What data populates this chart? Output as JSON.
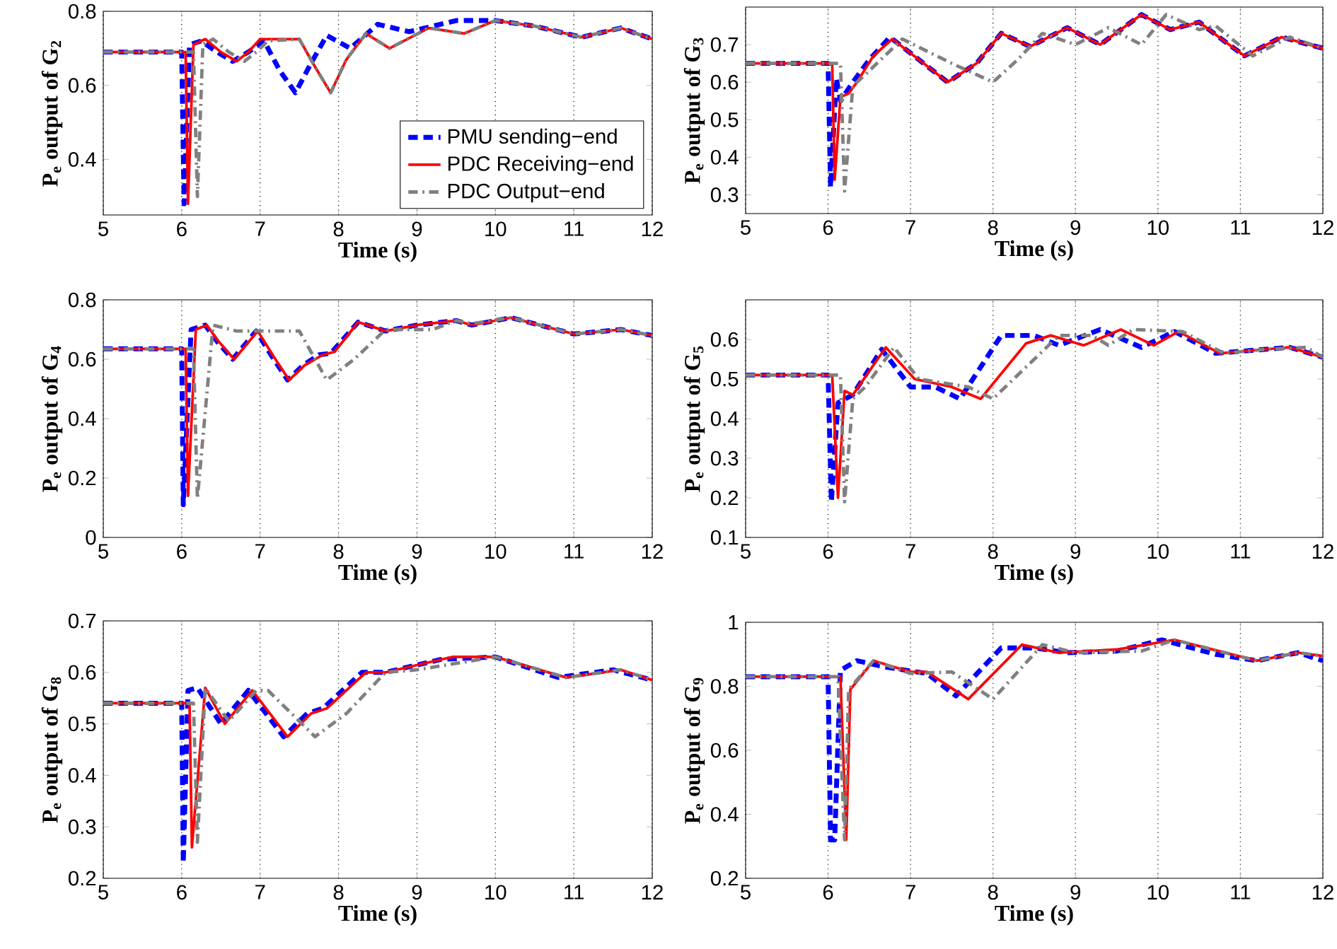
{
  "chart_data": [
    {
      "type": "line",
      "xlabel": "Time (s)",
      "ylabel": "P$_{e}$ output of G$_{2}$",
      "xlim": [
        5,
        12
      ],
      "xticks": [
        5,
        6,
        7,
        8,
        9,
        10,
        11,
        12
      ],
      "ylim": [
        0.25,
        0.8
      ],
      "yticks": [
        0.4,
        0.6,
        0.8
      ],
      "grid": "x",
      "legend": "bottom right",
      "series": [
        {
          "name": "PMU sending−end",
          "color": "#0000ff",
          "line_style": "dashed",
          "x": [
            5,
            6.0,
            6.03,
            6.1,
            6.25,
            6.45,
            6.65,
            6.85,
            7.05,
            7.25,
            7.45,
            7.65,
            7.85,
            8.15,
            8.5,
            8.9,
            9.5,
            10.0,
            10.5,
            11.1,
            11.6,
            12
          ],
          "values": [
            0.69,
            0.69,
            0.28,
            0.71,
            0.72,
            0.69,
            0.665,
            0.69,
            0.72,
            0.64,
            0.58,
            0.66,
            0.735,
            0.7,
            0.765,
            0.745,
            0.775,
            0.775,
            0.76,
            0.73,
            0.755,
            0.725
          ]
        },
        {
          "name": "PDC Receiving−end",
          "color": "#ff0000",
          "line_style": "solid",
          "x": [
            5,
            6.05,
            6.08,
            6.15,
            6.3,
            6.5,
            6.7,
            6.85,
            7.0,
            7.5,
            7.7,
            7.9,
            8.1,
            8.35,
            8.65,
            9.15,
            9.6,
            10.0,
            10.5,
            11.1,
            11.6,
            12
          ],
          "values": [
            0.69,
            0.69,
            0.28,
            0.71,
            0.725,
            0.69,
            0.665,
            0.69,
            0.725,
            0.725,
            0.65,
            0.58,
            0.67,
            0.74,
            0.7,
            0.755,
            0.74,
            0.775,
            0.76,
            0.73,
            0.755,
            0.725
          ]
        },
        {
          "name": "PDC Output−end",
          "color": "#808080",
          "line_style": "dashdot",
          "x": [
            5,
            6.15,
            6.2,
            6.27,
            6.4,
            6.6,
            6.8,
            6.95,
            7.1,
            7.5,
            7.7,
            7.9,
            8.1,
            8.35,
            8.65,
            9.15,
            9.6,
            10.0,
            10.5,
            11.1,
            11.6,
            12
          ],
          "values": [
            0.69,
            0.69,
            0.3,
            0.71,
            0.725,
            0.69,
            0.665,
            0.69,
            0.72,
            0.725,
            0.65,
            0.58,
            0.67,
            0.74,
            0.7,
            0.755,
            0.74,
            0.775,
            0.76,
            0.73,
            0.755,
            0.725
          ]
        }
      ]
    },
    {
      "type": "line",
      "xlabel": "Time (s)",
      "ylabel": "P$_{e}$ output of G$_{3}$",
      "xlim": [
        5,
        12
      ],
      "xticks": [
        5,
        6,
        7,
        8,
        9,
        10,
        11,
        12
      ],
      "ylim": [
        0.25,
        0.8
      ],
      "yticks": [
        0.3,
        0.4,
        0.5,
        0.6,
        0.7
      ],
      "grid": "x",
      "series": [
        {
          "color": "#0000ff",
          "line_style": "dashed",
          "x": [
            5,
            6.0,
            6.03,
            6.1,
            6.15,
            6.3,
            6.5,
            6.75,
            7.1,
            7.45,
            7.8,
            8.1,
            8.45,
            8.9,
            9.3,
            9.8,
            10.15,
            10.5,
            10.8,
            11.05,
            11.5,
            12
          ],
          "values": [
            0.65,
            0.65,
            0.32,
            0.61,
            0.55,
            0.6,
            0.66,
            0.72,
            0.66,
            0.6,
            0.65,
            0.73,
            0.695,
            0.745,
            0.7,
            0.78,
            0.74,
            0.76,
            0.71,
            0.67,
            0.72,
            0.69
          ]
        },
        {
          "color": "#ff0000",
          "line_style": "solid",
          "x": [
            5,
            6.05,
            6.08,
            6.15,
            6.25,
            6.35,
            6.55,
            6.78,
            7.1,
            7.45,
            7.8,
            8.1,
            8.45,
            8.9,
            9.3,
            9.8,
            10.15,
            10.5,
            10.8,
            11.05,
            11.5,
            12
          ],
          "values": [
            0.65,
            0.65,
            0.34,
            0.56,
            0.57,
            0.6,
            0.67,
            0.715,
            0.66,
            0.6,
            0.65,
            0.73,
            0.695,
            0.745,
            0.7,
            0.78,
            0.74,
            0.76,
            0.71,
            0.67,
            0.72,
            0.69
          ]
        },
        {
          "color": "#808080",
          "line_style": "dashdot",
          "x": [
            5,
            6.15,
            6.2,
            6.3,
            6.45,
            6.9,
            7.5,
            8.0,
            8.3,
            8.6,
            9.0,
            9.4,
            9.8,
            10.1,
            10.5,
            10.7,
            11.15,
            11.6,
            12
          ],
          "values": [
            0.65,
            0.65,
            0.31,
            0.59,
            0.62,
            0.715,
            0.65,
            0.6,
            0.66,
            0.73,
            0.7,
            0.745,
            0.7,
            0.78,
            0.74,
            0.75,
            0.67,
            0.72,
            0.69
          ]
        }
      ]
    },
    {
      "type": "line",
      "xlabel": "Time (s)",
      "ylabel": "P$_{e}$ output of G$_{4}$",
      "xlim": [
        5,
        12
      ],
      "xticks": [
        5,
        6,
        7,
        8,
        9,
        10,
        11,
        12
      ],
      "ylim": [
        0,
        0.8
      ],
      "yticks": [
        0,
        0.2,
        0.4,
        0.6,
        0.8
      ],
      "grid": "x",
      "series": [
        {
          "color": "#0000ff",
          "line_style": "dashed",
          "x": [
            5,
            6.0,
            6.02,
            6.12,
            6.3,
            6.45,
            6.65,
            6.95,
            7.15,
            7.35,
            7.55,
            7.75,
            7.9,
            8.25,
            8.6,
            9.0,
            9.5,
            9.7,
            10.2,
            11.0,
            11.6,
            12
          ],
          "values": [
            0.635,
            0.635,
            0.11,
            0.7,
            0.715,
            0.66,
            0.6,
            0.695,
            0.61,
            0.53,
            0.58,
            0.615,
            0.62,
            0.725,
            0.695,
            0.715,
            0.73,
            0.715,
            0.74,
            0.685,
            0.7,
            0.68
          ]
        },
        {
          "color": "#ff0000",
          "line_style": "solid",
          "x": [
            5,
            6.05,
            6.08,
            6.18,
            6.32,
            6.47,
            6.67,
            6.97,
            7.17,
            7.37,
            7.57,
            7.8,
            7.95,
            8.25,
            8.6,
            9.0,
            9.5,
            9.7,
            10.2,
            11.0,
            11.6,
            12
          ],
          "values": [
            0.635,
            0.635,
            0.14,
            0.7,
            0.715,
            0.66,
            0.6,
            0.695,
            0.61,
            0.53,
            0.58,
            0.615,
            0.625,
            0.725,
            0.695,
            0.715,
            0.73,
            0.715,
            0.74,
            0.685,
            0.7,
            0.68
          ]
        },
        {
          "color": "#808080",
          "line_style": "dashdot",
          "x": [
            5,
            6.15,
            6.2,
            6.4,
            6.7,
            7.5,
            7.85,
            8.2,
            8.6,
            9.2,
            9.5,
            9.7,
            10.2,
            11.0,
            11.6,
            12
          ],
          "values": [
            0.635,
            0.635,
            0.13,
            0.715,
            0.695,
            0.695,
            0.53,
            0.6,
            0.7,
            0.7,
            0.73,
            0.72,
            0.74,
            0.685,
            0.7,
            0.68
          ]
        }
      ]
    },
    {
      "type": "line",
      "xlabel": "Time (s)",
      "ylabel": "P$_{e}$ output of G$_{5}$",
      "xlim": [
        5,
        12
      ],
      "xticks": [
        5,
        6,
        7,
        8,
        9,
        10,
        11,
        12
      ],
      "ylim": [
        0.1,
        0.7
      ],
      "yticks": [
        0.1,
        0.2,
        0.3,
        0.4,
        0.5,
        0.6
      ],
      "grid": "x",
      "series": [
        {
          "color": "#0000ff",
          "line_style": "dashed",
          "x": [
            5,
            6.0,
            6.04,
            6.12,
            6.3,
            6.65,
            7.0,
            7.3,
            7.6,
            8.1,
            8.5,
            8.8,
            9.3,
            9.8,
            10.2,
            10.7,
            11.3,
            11.6,
            12
          ],
          "values": [
            0.51,
            0.51,
            0.19,
            0.44,
            0.46,
            0.575,
            0.48,
            0.48,
            0.45,
            0.61,
            0.61,
            0.585,
            0.625,
            0.58,
            0.62,
            0.565,
            0.575,
            0.58,
            0.555
          ]
        },
        {
          "color": "#ff0000",
          "line_style": "solid",
          "x": [
            5,
            6.05,
            6.12,
            6.2,
            6.3,
            6.7,
            7.05,
            7.5,
            7.85,
            8.4,
            8.7,
            9.1,
            9.55,
            9.95,
            10.25,
            10.75,
            11.3,
            11.6,
            12
          ],
          "values": [
            0.51,
            0.51,
            0.2,
            0.47,
            0.46,
            0.58,
            0.5,
            0.48,
            0.45,
            0.59,
            0.61,
            0.585,
            0.625,
            0.585,
            0.62,
            0.565,
            0.575,
            0.58,
            0.555
          ]
        },
        {
          "color": "#808080",
          "line_style": "dashdot",
          "x": [
            5,
            6.15,
            6.2,
            6.3,
            6.45,
            6.8,
            7.1,
            7.7,
            8.0,
            8.8,
            9.2,
            9.4,
            9.7,
            10.3,
            10.8,
            11.3,
            11.8,
            12
          ],
          "values": [
            0.51,
            0.51,
            0.19,
            0.45,
            0.48,
            0.58,
            0.5,
            0.48,
            0.45,
            0.61,
            0.61,
            0.585,
            0.625,
            0.62,
            0.565,
            0.575,
            0.58,
            0.555
          ]
        }
      ]
    },
    {
      "type": "line",
      "xlabel": "Time (s)",
      "ylabel": "P$_{e}$ output of G$_{8}$",
      "xlim": [
        5,
        12
      ],
      "xticks": [
        5,
        6,
        7,
        8,
        9,
        10,
        11,
        12
      ],
      "ylim": [
        0.2,
        0.7
      ],
      "yticks": [
        0.2,
        0.3,
        0.4,
        0.5,
        0.6,
        0.7
      ],
      "grid": "x",
      "series": [
        {
          "color": "#0000ff",
          "line_style": "dashed",
          "x": [
            5,
            6.0,
            6.02,
            6.08,
            6.2,
            6.5,
            6.85,
            7.3,
            7.6,
            7.8,
            8.3,
            8.6,
            9.3,
            10.0,
            10.8,
            11.5,
            12
          ],
          "values": [
            0.54,
            0.54,
            0.23,
            0.565,
            0.57,
            0.5,
            0.565,
            0.475,
            0.52,
            0.53,
            0.6,
            0.6,
            0.625,
            0.63,
            0.59,
            0.605,
            0.585
          ]
        },
        {
          "color": "#ff0000",
          "line_style": "solid",
          "x": [
            5,
            6.1,
            6.13,
            6.3,
            6.55,
            6.9,
            7.35,
            7.65,
            7.85,
            8.35,
            8.6,
            9.45,
            10.0,
            10.9,
            11.6,
            12
          ],
          "values": [
            0.54,
            0.54,
            0.26,
            0.57,
            0.5,
            0.565,
            0.475,
            0.52,
            0.53,
            0.6,
            0.6,
            0.63,
            0.63,
            0.59,
            0.605,
            0.585
          ]
        },
        {
          "color": "#808080",
          "line_style": "dashdot",
          "x": [
            5,
            6.15,
            6.2,
            6.3,
            6.6,
            6.95,
            7.1,
            7.7,
            8.1,
            8.6,
            9.0,
            10.0,
            10.9,
            11.6,
            12
          ],
          "values": [
            0.54,
            0.54,
            0.27,
            0.57,
            0.505,
            0.565,
            0.565,
            0.475,
            0.52,
            0.6,
            0.605,
            0.63,
            0.59,
            0.605,
            0.585
          ]
        }
      ]
    },
    {
      "type": "line",
      "xlabel": "Time (s)",
      "ylabel": "P$_{e}$ output of G$_{9}$",
      "xlim": [
        5,
        12
      ],
      "xticks": [
        5,
        6,
        7,
        8,
        9,
        10,
        11,
        12
      ],
      "ylim": [
        0.2,
        1
      ],
      "yticks": [
        0.2,
        0.4,
        0.6,
        0.8,
        1
      ],
      "grid": "x",
      "series": [
        {
          "color": "#0000ff",
          "line_style": "dashed",
          "x": [
            5,
            6.0,
            6.03,
            6.08,
            6.15,
            6.35,
            6.7,
            7.2,
            7.55,
            8.1,
            8.5,
            8.9,
            9.5,
            10.05,
            10.7,
            11.2,
            11.7,
            12
          ],
          "values": [
            0.83,
            0.83,
            0.32,
            0.32,
            0.85,
            0.88,
            0.86,
            0.84,
            0.77,
            0.92,
            0.92,
            0.905,
            0.91,
            0.945,
            0.9,
            0.88,
            0.905,
            0.88
          ]
        },
        {
          "color": "#ff0000",
          "line_style": "solid",
          "x": [
            5,
            6.15,
            6.22,
            6.27,
            6.55,
            7.0,
            7.2,
            7.7,
            8.35,
            8.8,
            9.5,
            10.2,
            11.2,
            11.7,
            12
          ],
          "values": [
            0.83,
            0.83,
            0.32,
            0.79,
            0.88,
            0.845,
            0.845,
            0.76,
            0.93,
            0.905,
            0.915,
            0.945,
            0.88,
            0.905,
            0.895
          ]
        },
        {
          "color": "#808080",
          "line_style": "dashdot",
          "x": [
            5,
            6.12,
            6.2,
            6.25,
            6.55,
            7.0,
            7.5,
            8.0,
            8.6,
            9.0,
            9.8,
            10.2,
            11.2,
            11.7,
            12
          ],
          "values": [
            0.83,
            0.83,
            0.32,
            0.79,
            0.88,
            0.84,
            0.845,
            0.76,
            0.93,
            0.905,
            0.91,
            0.945,
            0.88,
            0.905,
            0.895
          ]
        }
      ]
    }
  ]
}
